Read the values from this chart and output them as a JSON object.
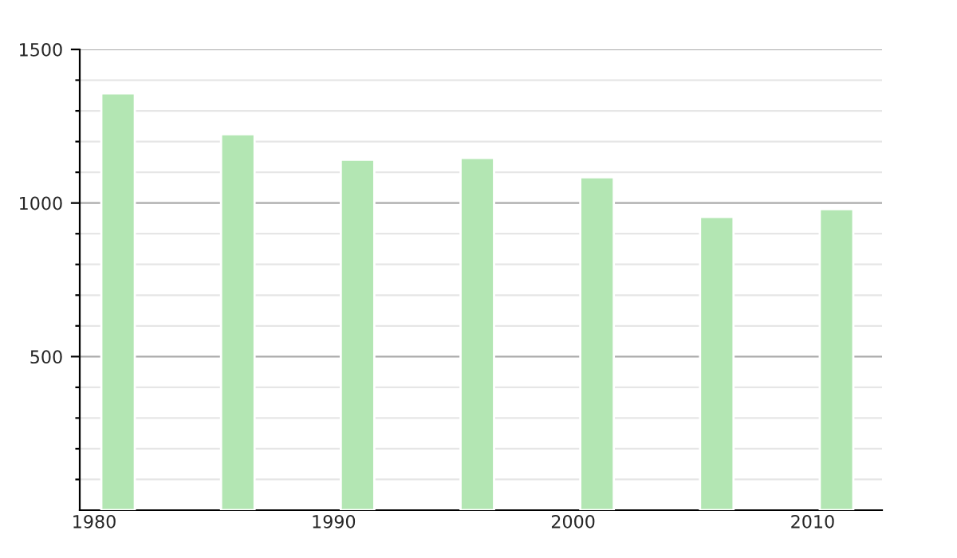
{
  "chart_data": {
    "type": "bar",
    "x": [
      1981,
      1986,
      1991,
      1996,
      2001,
      2006,
      2011
    ],
    "values": [
      1357,
      1224,
      1141,
      1147,
      1084,
      955,
      980
    ],
    "color": "#b3e6b3",
    "xlim": [
      1979.4,
      2012.9
    ],
    "xticks": [
      1980,
      1990,
      2000,
      2010
    ],
    "ylim": [
      0,
      1500
    ],
    "yticks": [
      {
        "value": 100,
        "label": null
      },
      {
        "value": 200,
        "label": null
      },
      {
        "value": 300,
        "label": null
      },
      {
        "value": 400,
        "label": null
      },
      500,
      {
        "value": 600,
        "label": null
      },
      {
        "value": 700,
        "label": null
      },
      {
        "value": 800,
        "label": null
      },
      {
        "value": 900,
        "label": null
      },
      1000,
      {
        "value": 1100,
        "label": null
      },
      {
        "value": 1200,
        "label": null
      },
      {
        "value": 1300,
        "label": null
      },
      {
        "value": 1400,
        "label": null
      },
      1500
    ],
    "grid": "y"
  }
}
